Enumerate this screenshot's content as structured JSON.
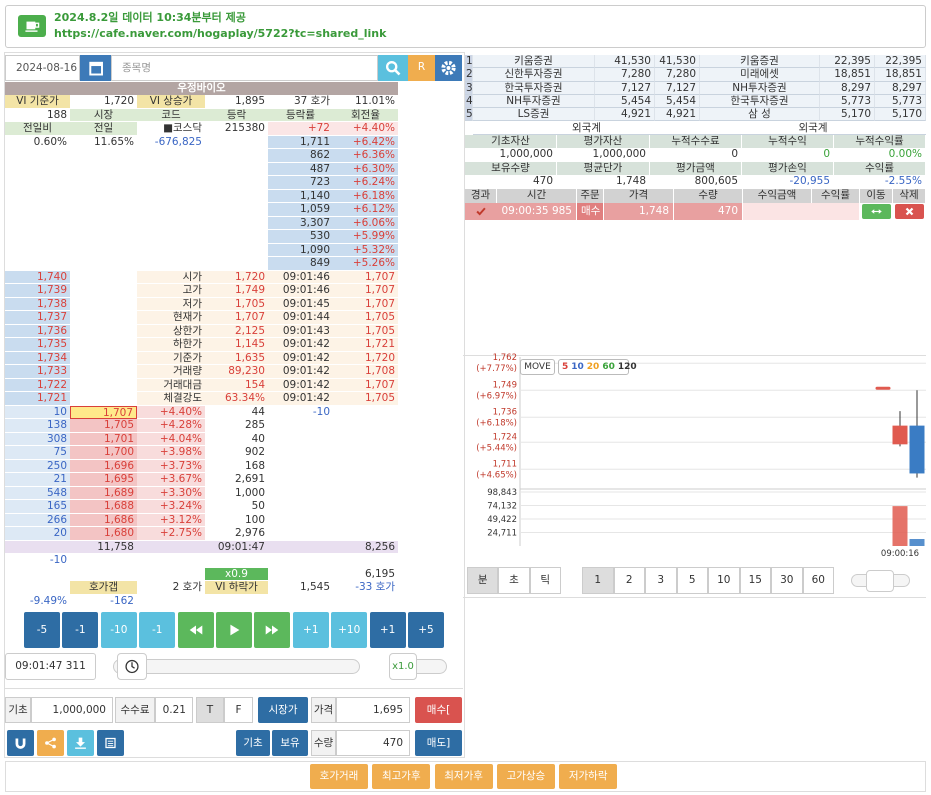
{
  "banner": {
    "title": "2024.8.2일 데이터 10:34분부터 제공",
    "link": "https://cafe.naver.com/hogaplay/5722?tc=shared_link"
  },
  "search": {
    "date": "2024-08-16",
    "placeholder": "종목명",
    "refresh": "R"
  },
  "book": {
    "name": "우정바이오",
    "rows": [
      [
        "VI 기준가",
        "1,720",
        "VI 상승가",
        "1,895",
        "37 호가",
        "11.01%"
      ],
      [
        "188",
        "시장",
        "코드",
        "등락",
        "등락률",
        "회전율"
      ],
      [
        "전일비",
        "전일",
        "■코스닥",
        "215380",
        "+72",
        "+4.40%"
      ],
      [
        "0.60%",
        "11.65%",
        "-676,825",
        null,
        "1,711",
        "+6.42%"
      ],
      [
        null,
        null,
        null,
        null,
        "862",
        "+6.36%"
      ],
      [
        null,
        null,
        null,
        null,
        "487",
        "+6.30%"
      ],
      [
        null,
        null,
        null,
        null,
        "723",
        "+6.24%"
      ],
      [
        null,
        null,
        null,
        null,
        "1,140",
        "+6.18%"
      ],
      [
        null,
        null,
        null,
        null,
        "1,059",
        "+6.12%"
      ],
      [
        null,
        null,
        null,
        null,
        "3,307",
        "+6.06%"
      ],
      [
        null,
        null,
        null,
        null,
        "530",
        "+5.99%"
      ],
      [
        null,
        null,
        null,
        null,
        "1,090",
        "+5.32%"
      ],
      [
        null,
        null,
        null,
        null,
        "849",
        "+5.26%"
      ],
      [
        "1,740",
        null,
        "시가",
        "1,720",
        "09:01:46",
        "1,707"
      ],
      [
        "1,739",
        null,
        "고가",
        "1,749",
        "09:01:46",
        "1,707"
      ],
      [
        "1,738",
        null,
        "저가",
        "1,705",
        "09:01:45",
        "1,707"
      ],
      [
        "1,737",
        null,
        "현재가",
        "1,707",
        "09:01:44",
        "1,705"
      ],
      [
        "1,736",
        null,
        "상한가",
        "2,125",
        "09:01:43",
        "1,705"
      ],
      [
        "1,735",
        null,
        "하한가",
        "1,145",
        "09:01:42",
        "1,721"
      ],
      [
        "1,734",
        null,
        "기준가",
        "1,635",
        "09:01:42",
        "1,720"
      ],
      [
        "1,733",
        null,
        "거래량",
        "89,230",
        "09:01:42",
        "1,708"
      ],
      [
        "1,722",
        null,
        "거래대금",
        "154",
        "09:01:42",
        "1,707"
      ],
      [
        "1,721",
        null,
        "체결강도",
        "63.34%",
        "09:01:42",
        "1,705"
      ],
      [
        "10",
        "1,707",
        "+4.40%",
        "44",
        "-10",
        null
      ],
      [
        "138",
        "1,705",
        "+4.28%",
        "285",
        null,
        null
      ],
      [
        "308",
        "1,701",
        "+4.04%",
        "40",
        null,
        null
      ],
      [
        "75",
        "1,700",
        "+3.98%",
        "902",
        null,
        null
      ],
      [
        "250",
        "1,696",
        "+3.73%",
        "168",
        null,
        null
      ],
      [
        "21",
        "1,695",
        "+3.67%",
        "2,691",
        null,
        null
      ],
      [
        "548",
        "1,689",
        "+3.30%",
        "1,000",
        null,
        null
      ],
      [
        "165",
        "1,688",
        "+3.24%",
        "50",
        null,
        null
      ],
      [
        "266",
        "1,686",
        "+3.12%",
        "100",
        null,
        null
      ],
      [
        "20",
        "1,680",
        "+2.75%",
        "2,976",
        null,
        null
      ],
      [
        null,
        "11,758",
        null,
        "09:01:47",
        null,
        "8,256"
      ],
      [
        "-10",
        null,
        null,
        null,
        null,
        null
      ],
      [
        null,
        null,
        null,
        "x0.9",
        null,
        "6,195"
      ],
      [
        null,
        "호가갭",
        "2 호가",
        "VI 하락가",
        "1,545",
        "-33 호가"
      ],
      [
        "-9.49%",
        "-162",
        null,
        null,
        null,
        null
      ]
    ]
  },
  "controls": {
    "back": [
      "-5",
      "-1",
      "-10",
      "-1"
    ],
    "forward": [
      "+1",
      "+10",
      "+1",
      "+5"
    ],
    "time": "09:01:47 311",
    "speed": "x1.0"
  },
  "order": {
    "base_label": "기초",
    "base": "1,000,000",
    "fee_label": "수수료",
    "fee": "0.21",
    "t": "T",
    "f": "F",
    "market": "시장가",
    "price_label": "가격",
    "price": "1,695",
    "buy": "매수[",
    "base_btn": "기초",
    "hold_btn": "보유",
    "qty_label": "수량",
    "qty": "470",
    "sell": "매도]"
  },
  "modes": [
    "호가거래",
    "최고가후",
    "최저가후",
    "고가상승",
    "저가하락"
  ],
  "brokers": {
    "rows": [
      [
        "1",
        "키움증권",
        "41,530",
        "41,530",
        "키움증권",
        "22,395",
        "22,395"
      ],
      [
        "2",
        "신한투자증권",
        "7,280",
        "7,280",
        "미래에셋",
        "18,851",
        "18,851"
      ],
      [
        "3",
        "한국투자증권",
        "7,127",
        "7,127",
        "NH투자증권",
        "8,297",
        "8,297"
      ],
      [
        "4",
        "NH투자증권",
        "5,454",
        "5,454",
        "한국투자증권",
        "5,773",
        "5,773"
      ],
      [
        "5",
        "LS증권",
        "4,921",
        "4,921",
        "삼 성",
        "5,170",
        "5,170"
      ]
    ],
    "foreign": [
      "외국계",
      "외국계"
    ]
  },
  "account": {
    "rows": [
      [
        "기초자산",
        "평가자산",
        "누적수수료",
        "누적수익",
        "누적수익률"
      ],
      [
        "1,000,000",
        "1,000,000",
        "0",
        "0",
        "0.00%"
      ],
      [
        "보유수량",
        "평균단가",
        "평가금액",
        "평가손익",
        "수익률"
      ],
      [
        "470",
        "1,748",
        "800,605",
        "-20,955",
        "-2.55%"
      ]
    ]
  },
  "trades": {
    "headers": [
      "경과",
      "시간",
      "주문",
      "가격",
      "수량",
      "수익금액",
      "수익률",
      "이동",
      "삭제"
    ],
    "rows": [
      [
        "09:00:35 985",
        "매수",
        "1,748",
        "470"
      ]
    ]
  },
  "chart_controls": {
    "move": "MOVE",
    "ma": [
      "5",
      "10",
      "20",
      "60",
      "120"
    ],
    "units": [
      "분",
      "초",
      "틱"
    ],
    "periods": [
      "1",
      "2",
      "3",
      "5",
      "10",
      "15",
      "30",
      "60"
    ]
  },
  "chart_data": {
    "type": "candlestick",
    "x": [
      null,
      "09:00:16",
      null
    ],
    "open": [
      1750,
      1723,
      1732
    ],
    "high": [
      1750,
      1739,
      1749
    ],
    "low": [
      1750,
      1722,
      1707
    ],
    "close": [
      1750,
      1732,
      1709
    ],
    "volume": [
      null,
      73000,
      12800
    ],
    "up_color": "#e05a4f",
    "down_color": "#3a7cc4",
    "ylim": [
      1702,
      1765
    ],
    "yticks": [
      {
        "value": 1762,
        "label": "1,762",
        "sub": "(+7.77%)"
      },
      {
        "value": 1749,
        "label": "1,749",
        "sub": "(+6.97%)"
      },
      {
        "value": 1736,
        "label": "1,736",
        "sub": "(+6.18%)"
      },
      {
        "value": 1724,
        "label": "1,724",
        "sub": "(+5.44%)"
      },
      {
        "value": 1711,
        "label": "1,711",
        "sub": "(+4.65%)"
      }
    ],
    "volume_ylim": [
      0,
      102500
    ],
    "volume_yticks": [
      {
        "value": 98843,
        "label": "98,843"
      },
      {
        "value": 74132,
        "label": "74,132"
      },
      {
        "value": 49422,
        "label": "49,422"
      },
      {
        "value": 24711,
        "label": "24,711"
      }
    ]
  }
}
